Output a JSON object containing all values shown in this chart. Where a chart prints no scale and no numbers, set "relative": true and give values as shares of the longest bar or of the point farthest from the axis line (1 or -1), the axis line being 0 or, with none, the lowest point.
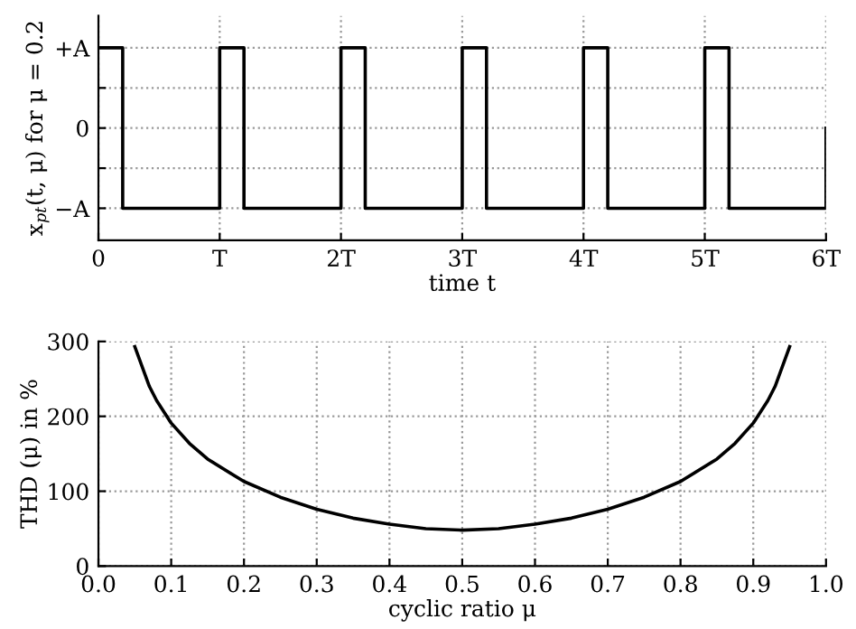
{
  "chart_data": [
    {
      "type": "step",
      "xlabel": "time t",
      "ylabel": "x$_{pt}$(t, μ) for μ = 0.2",
      "relative": true,
      "x": [
        0,
        0.2,
        1,
        1.2,
        2,
        2.2,
        3,
        3.2,
        4,
        4.2,
        5,
        5.2,
        6
      ],
      "series": [
        {
          "color": "#000000",
          "values": [
            1,
            -1,
            1,
            -1,
            1,
            -1,
            1,
            -1,
            1,
            -1,
            1,
            -1,
            0
          ]
        }
      ],
      "xlim": [
        0,
        6
      ],
      "xticks": [
        0,
        {
          "value": 1,
          "label": "T"
        },
        {
          "value": 2,
          "label": "2T"
        },
        {
          "value": 3,
          "label": "3T"
        },
        {
          "value": 4,
          "label": "4T"
        },
        {
          "value": 5,
          "label": "5T"
        },
        {
          "value": 6,
          "label": "6T"
        }
      ],
      "annotations": [
        "−A",
        "0",
        "+A"
      ],
      "grid": true,
      "line_style": "solid",
      "marker": "none"
    },
    {
      "type": "line",
      "xlabel": "cyclic ratio μ",
      "ylabel": "THD (μ) in %",
      "x": [
        0.05,
        0.07,
        0.08,
        0.1,
        0.125,
        0.15,
        0.2,
        0.25,
        0.3,
        0.35,
        0.4,
        0.45,
        0.5,
        0.55,
        0.6,
        0.65,
        0.7,
        0.75,
        0.8,
        0.85,
        0.875,
        0.9,
        0.92,
        0.93,
        0.95
      ],
      "series": [
        {
          "color": "#000000",
          "values": [
            293,
            240,
            221,
            191,
            164,
            143,
            113,
            92,
            76,
            64,
            56,
            50,
            48,
            50,
            56,
            64,
            76,
            92,
            113,
            143,
            164,
            191,
            221,
            240,
            293
          ]
        }
      ],
      "xlim": [
        0,
        1
      ],
      "xticks": [
        {
          "value": 0,
          "label": "0.0"
        },
        0.1,
        0.2,
        0.3,
        0.4,
        0.5,
        0.6,
        0.7,
        0.8,
        0.9,
        {
          "value": 1,
          "label": "1.0"
        }
      ],
      "ylim": [
        0,
        300
      ],
      "yticks": [
        0,
        100,
        200,
        300
      ],
      "grid": true,
      "line_style": "solid",
      "marker": "none"
    }
  ]
}
